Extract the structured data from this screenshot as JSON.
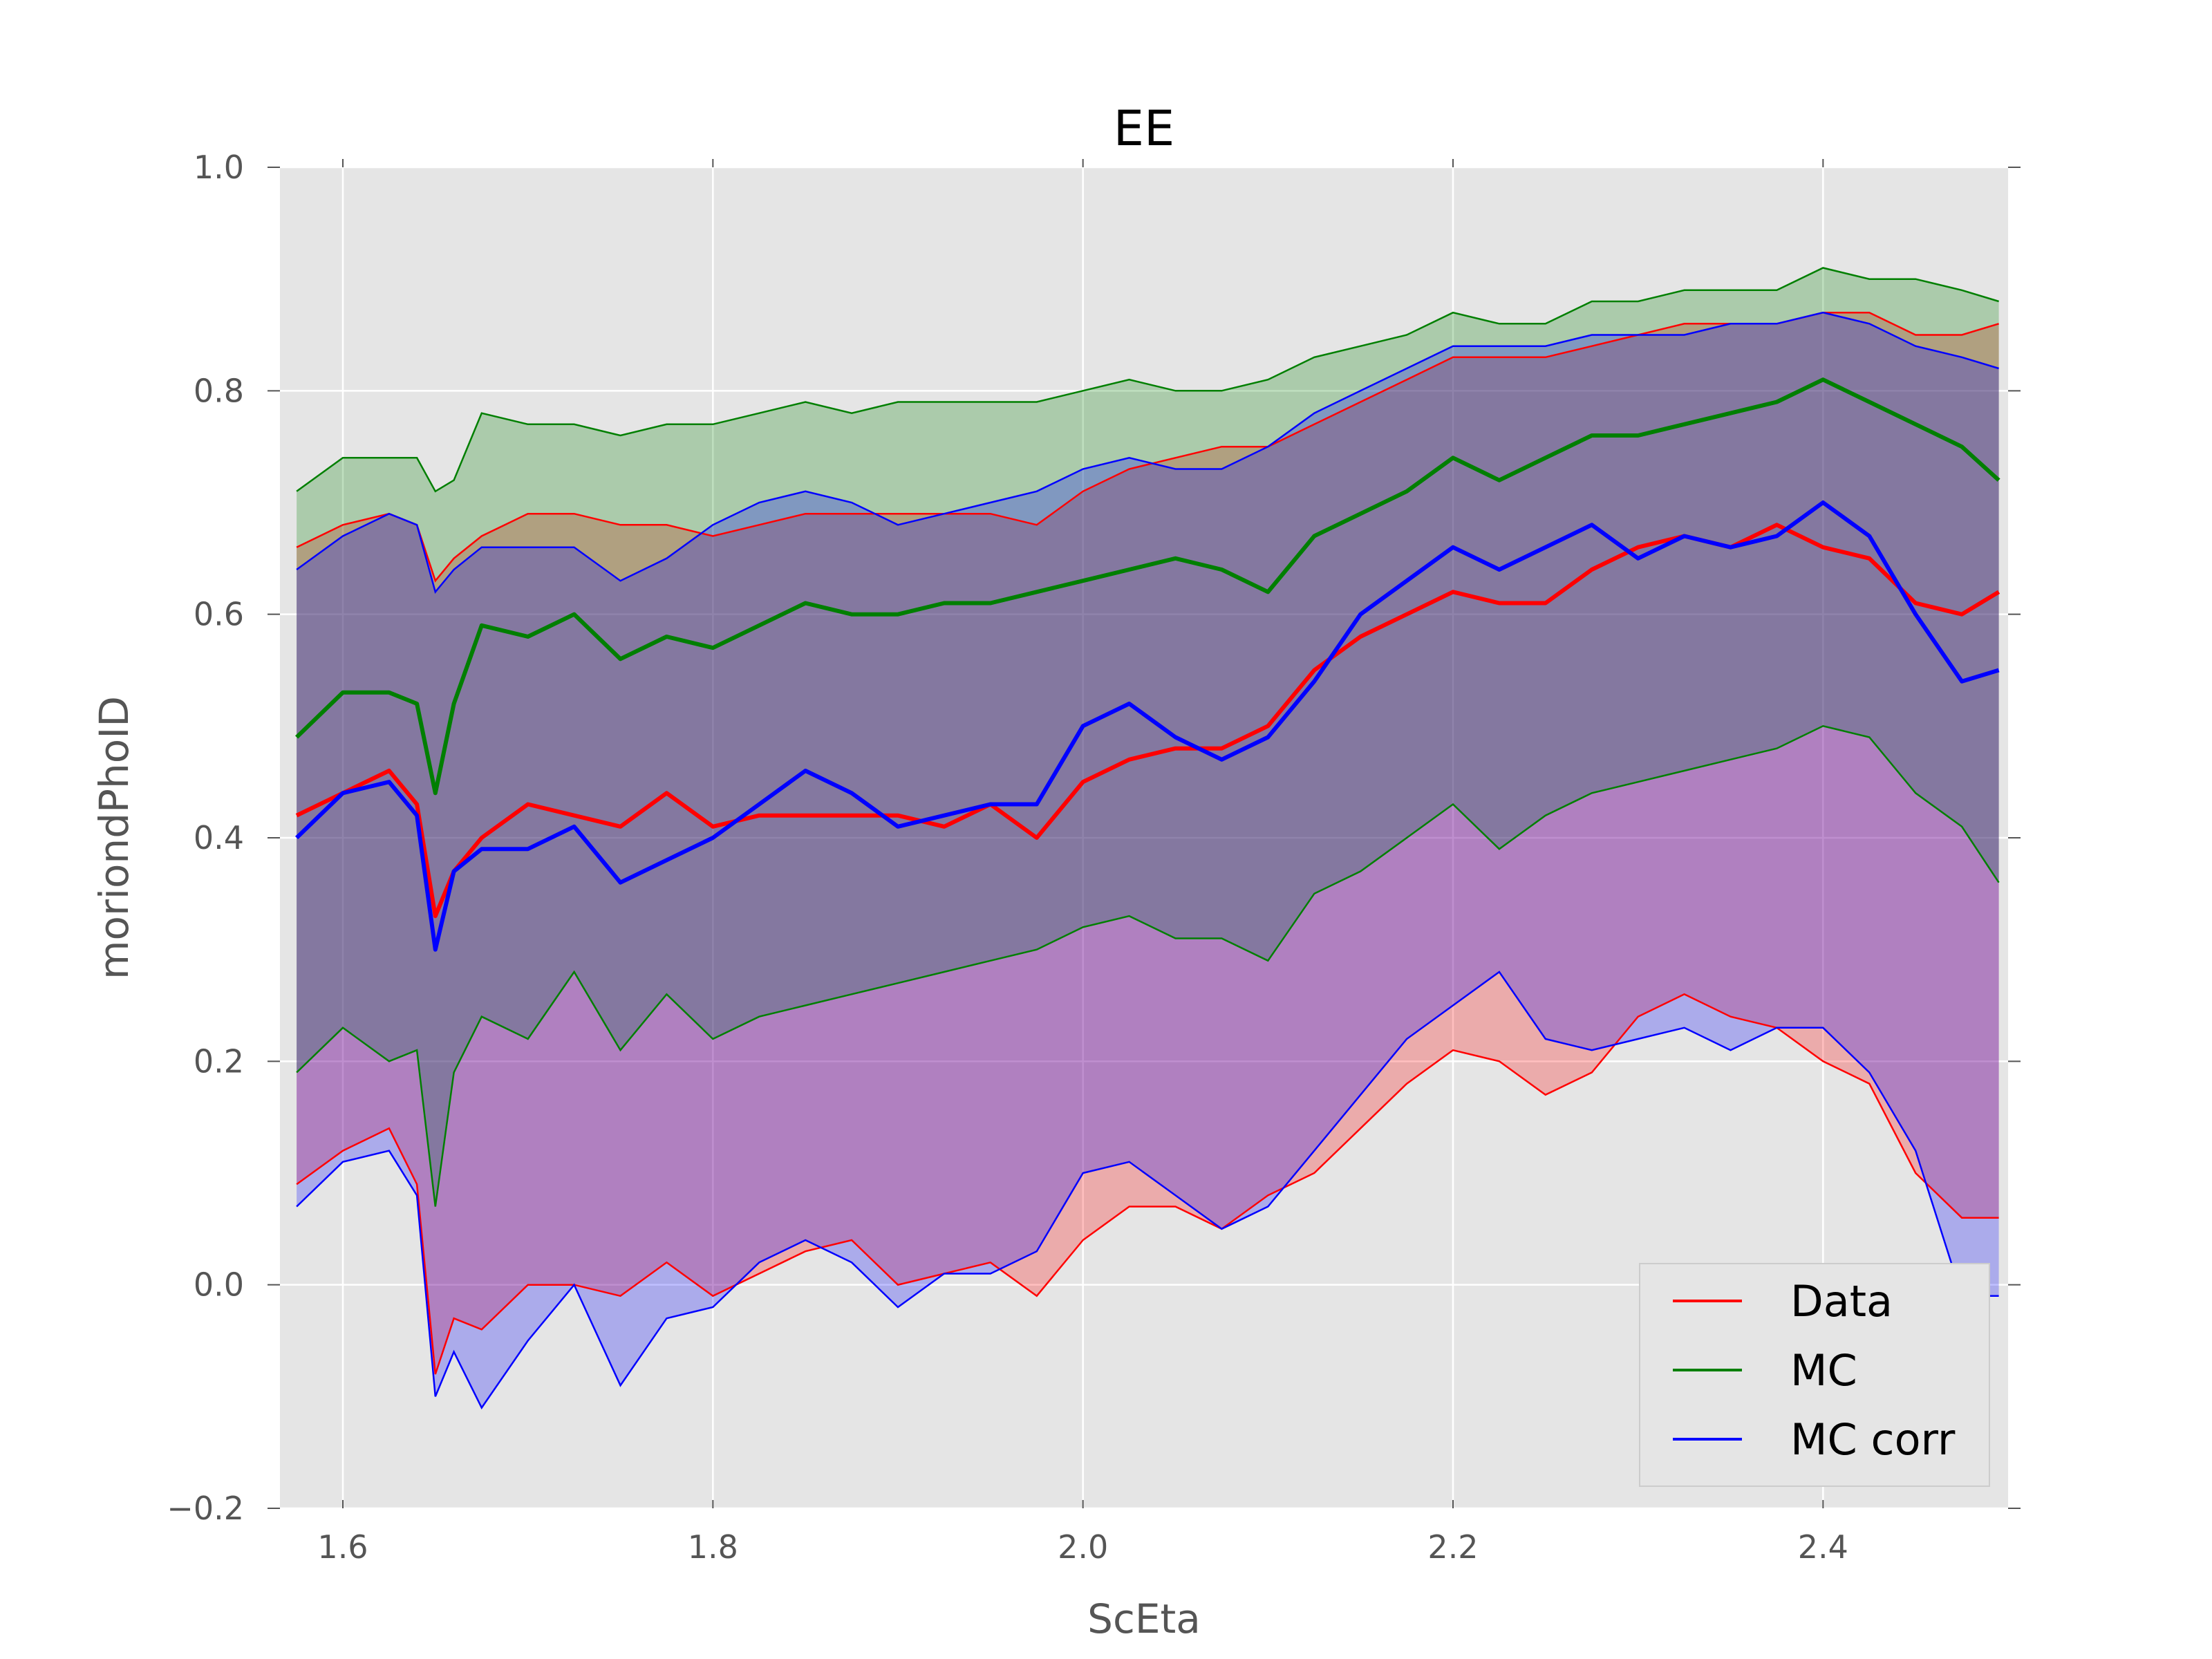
{
  "chart_data": {
    "type": "line",
    "title": "EE",
    "xlabel": "ScEta",
    "ylabel": "moriondPhoID",
    "xlim": [
      1.566,
      2.5
    ],
    "ylim": [
      -0.2,
      1.0
    ],
    "xticks": [
      "1.6",
      "1.8",
      "2.0",
      "2.2",
      "2.4"
    ],
    "yticks": [
      "−0.2",
      "0.0",
      "0.2",
      "0.4",
      "0.6",
      "0.8",
      "1.0"
    ],
    "grid": true,
    "legend_position": "lower-right",
    "bands": "median line with shaded band between lower and upper quantile lines for each series",
    "series": [
      {
        "name": "Data",
        "color": "#ff0000",
        "x": [
          1.575,
          1.6,
          1.625,
          1.64,
          1.65,
          1.66,
          1.675,
          1.7,
          1.725,
          1.75,
          1.775,
          1.8,
          1.825,
          1.85,
          1.875,
          1.9,
          1.925,
          1.95,
          1.975,
          2.0,
          2.025,
          2.05,
          2.075,
          2.1,
          2.125,
          2.15,
          2.175,
          2.2,
          2.225,
          2.25,
          2.275,
          2.3,
          2.325,
          2.35,
          2.375,
          2.4,
          2.425,
          2.45,
          2.475,
          2.495
        ],
        "median": [
          0.42,
          0.44,
          0.46,
          0.43,
          0.33,
          0.37,
          0.4,
          0.43,
          0.42,
          0.41,
          0.44,
          0.41,
          0.42,
          0.42,
          0.42,
          0.42,
          0.41,
          0.43,
          0.4,
          0.45,
          0.47,
          0.48,
          0.48,
          0.5,
          0.55,
          0.58,
          0.6,
          0.62,
          0.61,
          0.61,
          0.64,
          0.66,
          0.67,
          0.66,
          0.68,
          0.66,
          0.65,
          0.61,
          0.6,
          0.62
        ],
        "upper": [
          0.66,
          0.68,
          0.69,
          0.68,
          0.63,
          0.65,
          0.67,
          0.69,
          0.69,
          0.68,
          0.68,
          0.67,
          0.68,
          0.69,
          0.69,
          0.69,
          0.69,
          0.69,
          0.68,
          0.71,
          0.73,
          0.74,
          0.75,
          0.75,
          0.77,
          0.79,
          0.81,
          0.83,
          0.83,
          0.83,
          0.84,
          0.85,
          0.86,
          0.86,
          0.86,
          0.87,
          0.87,
          0.85,
          0.85,
          0.86
        ],
        "lower": [
          0.09,
          0.12,
          0.14,
          0.09,
          -0.08,
          -0.03,
          -0.04,
          0.0,
          0.0,
          -0.01,
          0.02,
          -0.01,
          0.01,
          0.03,
          0.04,
          0.0,
          0.01,
          0.02,
          -0.01,
          0.04,
          0.07,
          0.07,
          0.05,
          0.08,
          0.1,
          0.14,
          0.18,
          0.21,
          0.2,
          0.17,
          0.19,
          0.24,
          0.26,
          0.24,
          0.23,
          0.2,
          0.18,
          0.1,
          0.06,
          0.06
        ]
      },
      {
        "name": "MC",
        "color": "#007f00",
        "x": [
          1.575,
          1.6,
          1.625,
          1.64,
          1.65,
          1.66,
          1.675,
          1.7,
          1.725,
          1.75,
          1.775,
          1.8,
          1.825,
          1.85,
          1.875,
          1.9,
          1.925,
          1.95,
          1.975,
          2.0,
          2.025,
          2.05,
          2.075,
          2.1,
          2.125,
          2.15,
          2.175,
          2.2,
          2.225,
          2.25,
          2.275,
          2.3,
          2.325,
          2.35,
          2.375,
          2.4,
          2.425,
          2.45,
          2.475,
          2.495
        ],
        "median": [
          0.49,
          0.53,
          0.53,
          0.52,
          0.44,
          0.52,
          0.59,
          0.58,
          0.6,
          0.56,
          0.58,
          0.57,
          0.59,
          0.61,
          0.6,
          0.6,
          0.61,
          0.61,
          0.62,
          0.63,
          0.64,
          0.65,
          0.64,
          0.62,
          0.67,
          0.69,
          0.71,
          0.74,
          0.72,
          0.74,
          0.76,
          0.76,
          0.77,
          0.78,
          0.79,
          0.81,
          0.79,
          0.77,
          0.75,
          0.72
        ],
        "upper": [
          0.71,
          0.74,
          0.74,
          0.74,
          0.71,
          0.72,
          0.78,
          0.77,
          0.77,
          0.76,
          0.77,
          0.77,
          0.78,
          0.79,
          0.78,
          0.79,
          0.79,
          0.79,
          0.79,
          0.8,
          0.81,
          0.8,
          0.8,
          0.81,
          0.83,
          0.84,
          0.85,
          0.87,
          0.86,
          0.86,
          0.88,
          0.88,
          0.89,
          0.89,
          0.89,
          0.91,
          0.9,
          0.9,
          0.89,
          0.88
        ],
        "lower": [
          0.19,
          0.23,
          0.2,
          0.21,
          0.07,
          0.19,
          0.24,
          0.22,
          0.28,
          0.21,
          0.26,
          0.22,
          0.24,
          0.25,
          0.26,
          0.27,
          0.28,
          0.29,
          0.3,
          0.32,
          0.33,
          0.31,
          0.31,
          0.29,
          0.35,
          0.37,
          0.4,
          0.43,
          0.39,
          0.42,
          0.44,
          0.45,
          0.46,
          0.47,
          0.48,
          0.5,
          0.49,
          0.44,
          0.41,
          0.36
        ]
      },
      {
        "name": "MC corr",
        "color": "#0000ff",
        "x": [
          1.575,
          1.6,
          1.625,
          1.64,
          1.65,
          1.66,
          1.675,
          1.7,
          1.725,
          1.75,
          1.775,
          1.8,
          1.825,
          1.85,
          1.875,
          1.9,
          1.925,
          1.95,
          1.975,
          2.0,
          2.025,
          2.05,
          2.075,
          2.1,
          2.125,
          2.15,
          2.175,
          2.2,
          2.225,
          2.25,
          2.275,
          2.3,
          2.325,
          2.35,
          2.375,
          2.4,
          2.425,
          2.45,
          2.475,
          2.495
        ],
        "median": [
          0.4,
          0.44,
          0.45,
          0.42,
          0.3,
          0.37,
          0.39,
          0.39,
          0.41,
          0.36,
          0.38,
          0.4,
          0.43,
          0.46,
          0.44,
          0.41,
          0.42,
          0.43,
          0.43,
          0.5,
          0.52,
          0.49,
          0.47,
          0.49,
          0.54,
          0.6,
          0.63,
          0.66,
          0.64,
          0.66,
          0.68,
          0.65,
          0.67,
          0.66,
          0.67,
          0.7,
          0.67,
          0.6,
          0.54,
          0.55
        ],
        "upper": [
          0.64,
          0.67,
          0.69,
          0.68,
          0.62,
          0.64,
          0.66,
          0.66,
          0.66,
          0.63,
          0.65,
          0.68,
          0.7,
          0.71,
          0.7,
          0.68,
          0.69,
          0.7,
          0.71,
          0.73,
          0.74,
          0.73,
          0.73,
          0.75,
          0.78,
          0.8,
          0.82,
          0.84,
          0.84,
          0.84,
          0.85,
          0.85,
          0.85,
          0.86,
          0.86,
          0.87,
          0.86,
          0.84,
          0.83,
          0.82
        ],
        "lower": [
          0.07,
          0.11,
          0.12,
          0.08,
          -0.1,
          -0.06,
          -0.11,
          -0.05,
          0.0,
          -0.09,
          -0.03,
          -0.02,
          0.02,
          0.04,
          0.02,
          -0.02,
          0.01,
          0.01,
          0.03,
          0.1,
          0.11,
          0.08,
          0.05,
          0.07,
          0.12,
          0.17,
          0.22,
          0.25,
          0.28,
          0.22,
          0.21,
          0.22,
          0.23,
          0.21,
          0.23,
          0.23,
          0.19,
          0.12,
          -0.01,
          -0.01
        ]
      }
    ]
  }
}
